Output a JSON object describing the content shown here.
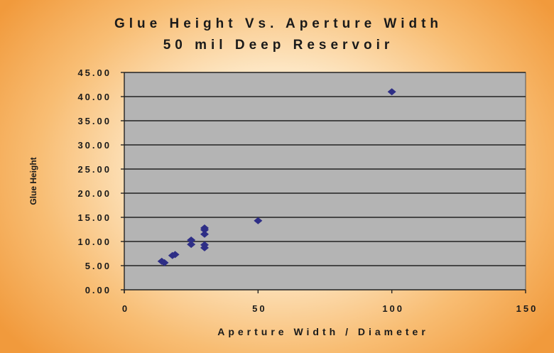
{
  "chart_data": {
    "type": "scatter",
    "title": "Glue Height Vs. Aperture Width",
    "subtitle": "50 mil Deep Reservoir",
    "xlabel": "Aperture Width / Diameter",
    "ylabel": "Glue Height",
    "xlim": [
      0,
      150
    ],
    "ylim": [
      0,
      45
    ],
    "x_ticks": [
      0,
      50,
      100,
      150
    ],
    "x_tick_labels": [
      "0",
      "50",
      "100",
      "150"
    ],
    "y_ticks": [
      0,
      5,
      10,
      15,
      20,
      25,
      30,
      35,
      40,
      45
    ],
    "y_tick_labels": [
      "0.00",
      "5.00",
      "10.00",
      "15.00",
      "20.00",
      "25.00",
      "30.00",
      "35.00",
      "40.00",
      "45.00"
    ],
    "grid": "horizontal",
    "legend": "none",
    "series": [
      {
        "marker_color": "#2e2e86",
        "points": [
          {
            "x": 14,
            "y": 5.9
          },
          {
            "x": 15,
            "y": 5.6
          },
          {
            "x": 18,
            "y": 7.1
          },
          {
            "x": 19,
            "y": 7.3
          },
          {
            "x": 25,
            "y": 9.4
          },
          {
            "x": 25,
            "y": 10.3
          },
          {
            "x": 30,
            "y": 8.7
          },
          {
            "x": 30,
            "y": 9.3
          },
          {
            "x": 30,
            "y": 11.5
          },
          {
            "x": 30,
            "y": 12.4
          },
          {
            "x": 30,
            "y": 12.8
          },
          {
            "x": 50,
            "y": 14.3
          },
          {
            "x": 100,
            "y": 41.0
          }
        ]
      }
    ]
  },
  "colors": {
    "plot_background": "#b4b4b4",
    "gridline": "#222222",
    "marker": "#2e2e86"
  }
}
